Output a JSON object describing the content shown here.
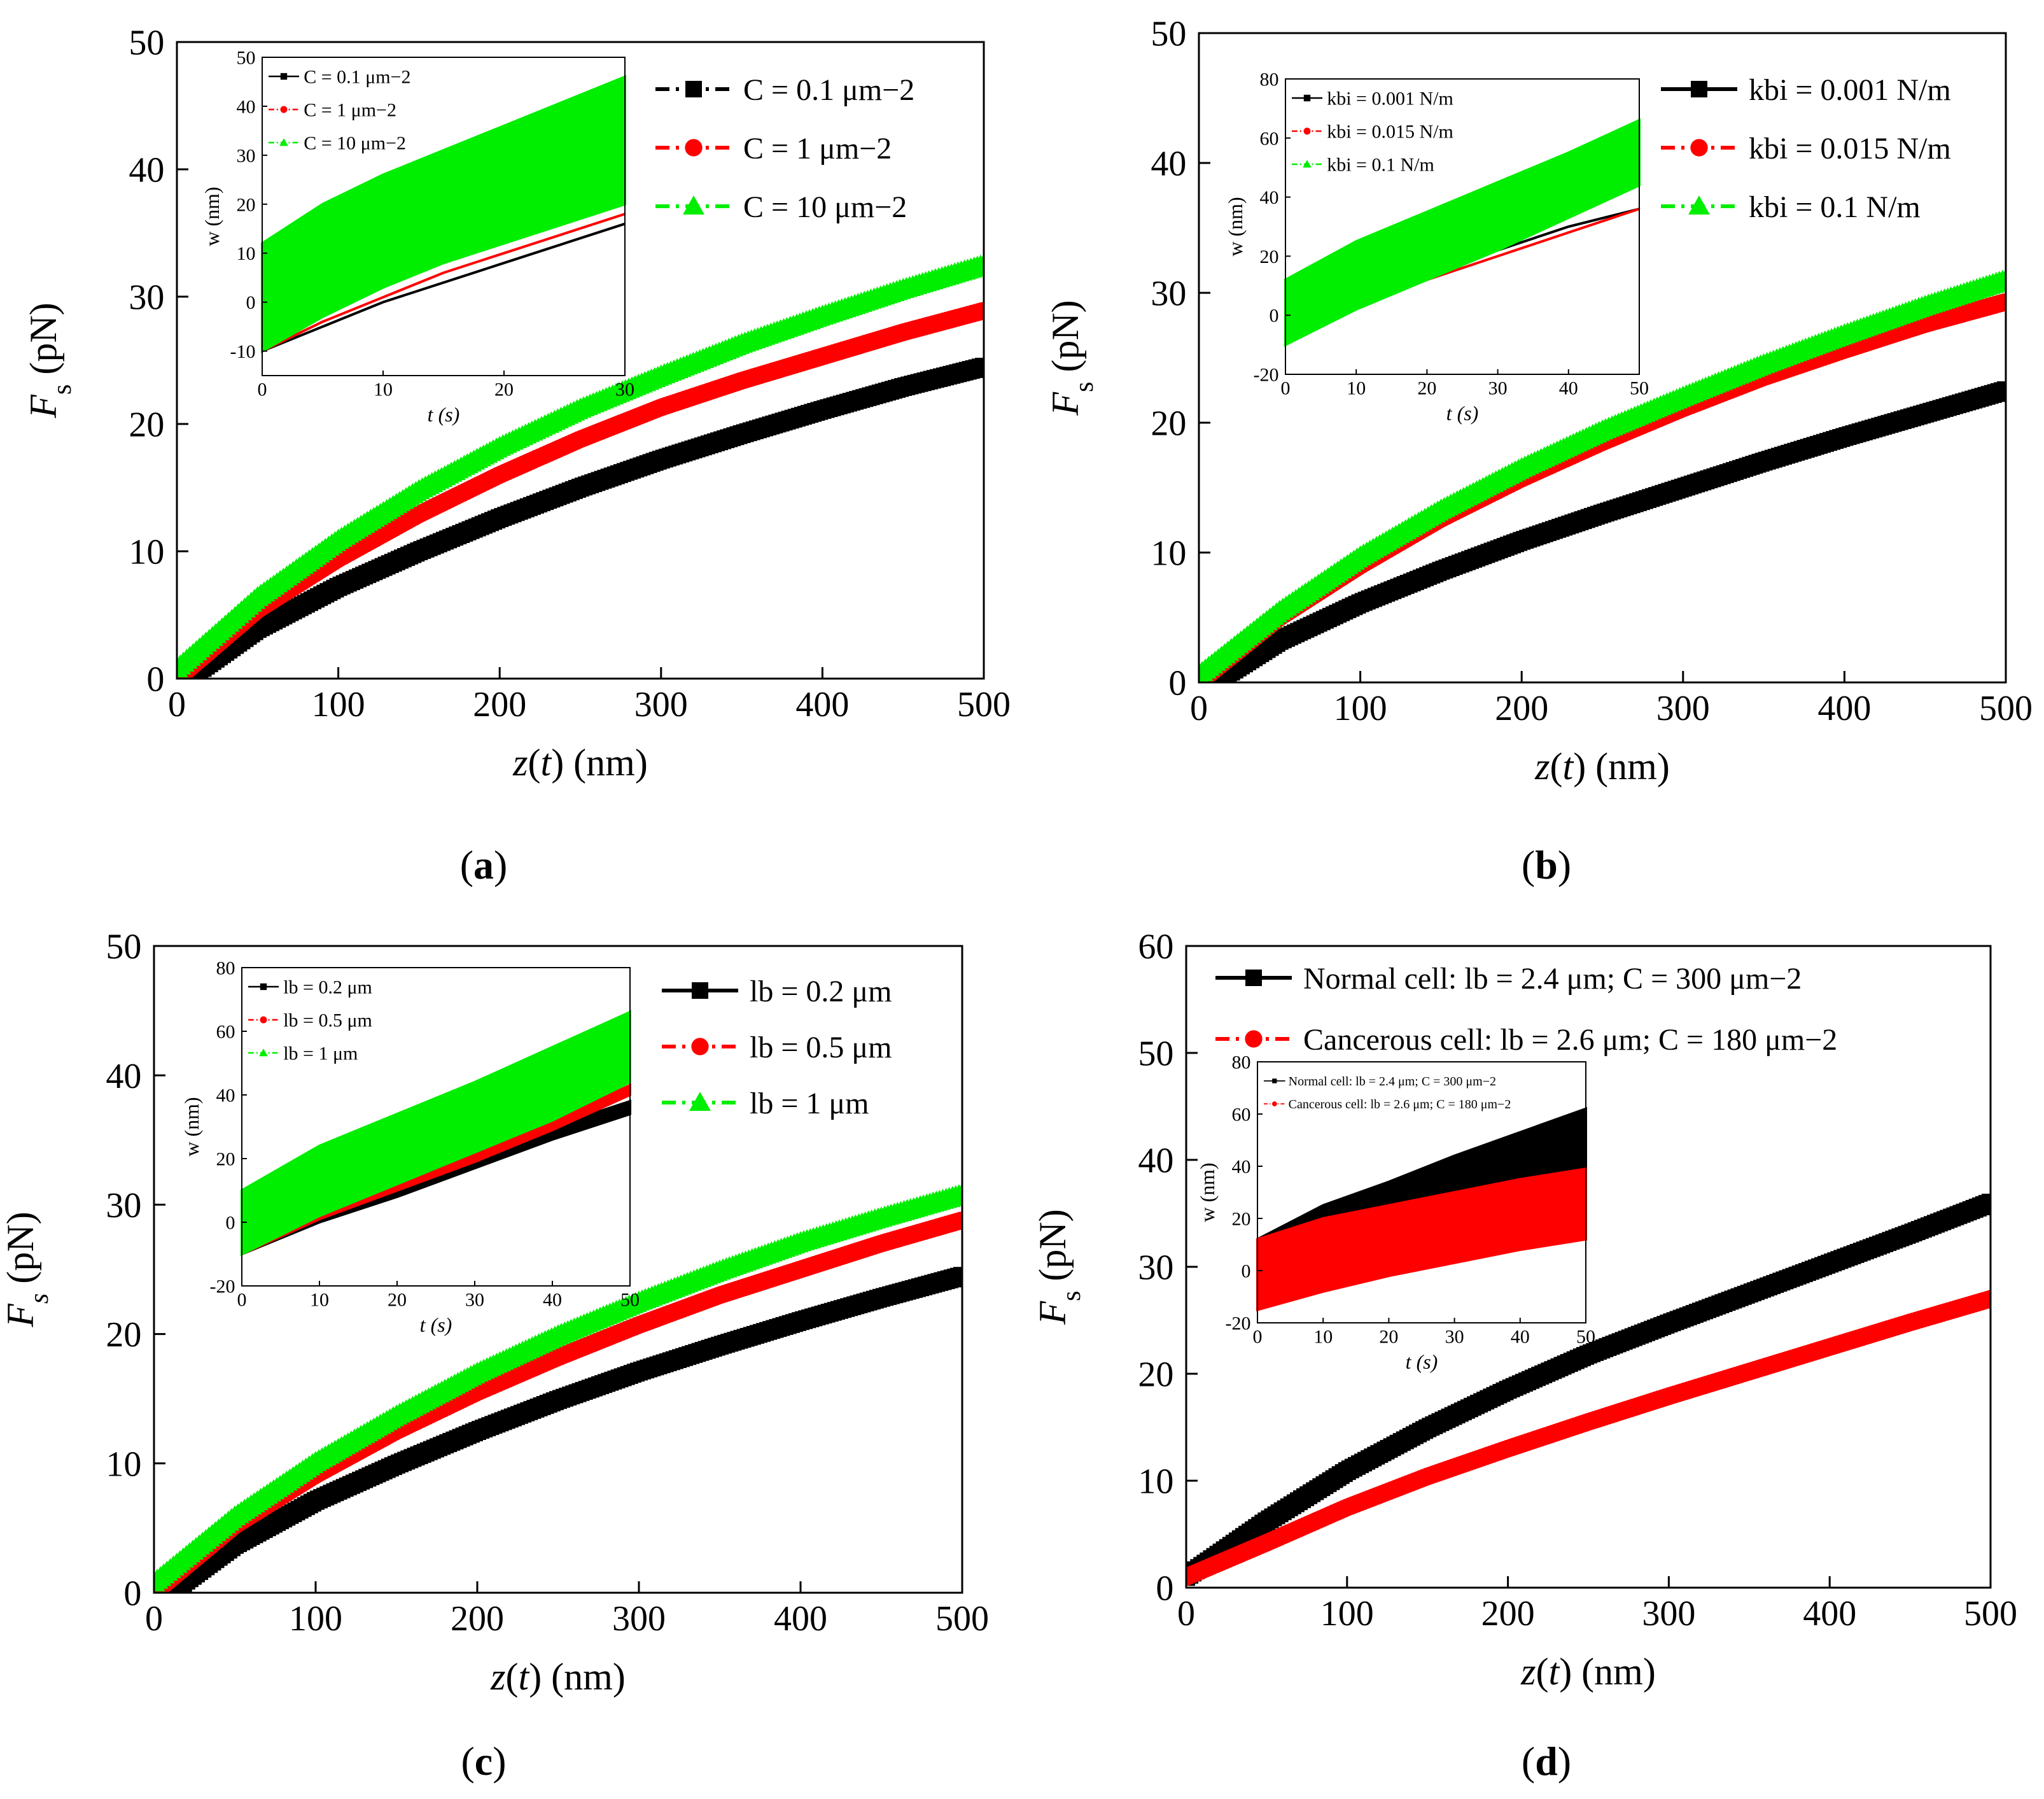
{
  "chart_data": [
    {
      "id": "a",
      "type": "line",
      "panel_label": "(a)",
      "xlabel": "z(t) (nm)",
      "ylabel": "Fs (pN)",
      "xlim": [
        0,
        500
      ],
      "ylim": [
        0,
        50
      ],
      "xticks": [
        0,
        100,
        200,
        300,
        400,
        500
      ],
      "yticks": [
        0,
        10,
        20,
        30,
        40,
        50
      ],
      "series": [
        {
          "name": "C = 0.1 μm−2",
          "color": "#000000",
          "marker": "square",
          "style": "dashdot",
          "x": [
            10,
            50,
            100,
            150,
            200,
            250,
            300,
            350,
            400,
            450,
            500
          ],
          "values": [
            0.3,
            3.9,
            7.2,
            10.0,
            12.6,
            15.0,
            17.2,
            19.2,
            21.1,
            22.9,
            24.5
          ]
        },
        {
          "name": "C = 1  μm−2",
          "color": "#ff0000",
          "marker": "circle",
          "style": "dashdot",
          "x": [
            5,
            50,
            100,
            150,
            200,
            250,
            300,
            350,
            400,
            450,
            500
          ],
          "values": [
            0.5,
            5.4,
            9.4,
            12.9,
            16.0,
            18.8,
            21.3,
            23.4,
            25.3,
            27.2,
            28.9
          ]
        },
        {
          "name": "C = 10 μm−2",
          "color": "#00ee00",
          "marker": "triangle",
          "style": "dashdot",
          "x": [
            0,
            50,
            100,
            150,
            200,
            250,
            300,
            350,
            400,
            450,
            500
          ],
          "values": [
            0.8,
            6.4,
            10.9,
            14.8,
            18.2,
            21.2,
            23.8,
            26.3,
            28.5,
            30.6,
            32.5
          ]
        }
      ],
      "inset": {
        "xlabel": "t (s)",
        "ylabel": "w (nm)",
        "xlim": [
          0,
          30
        ],
        "ylim": [
          -15,
          50
        ],
        "xticks": [
          0,
          10,
          20,
          30
        ],
        "yticks": [
          -10,
          0,
          10,
          20,
          30,
          40,
          50
        ],
        "series": [
          {
            "name": "C = 0.1 μm−2",
            "color": "#000000",
            "lower": [
              -10,
              -5,
              0,
              4,
              8,
              12,
              16
            ],
            "upper": [
              -10,
              -5,
              0,
              4,
              8,
              12,
              16
            ],
            "x": [
              0,
              5,
              10,
              15,
              20,
              25,
              30
            ]
          },
          {
            "name": "C = 1  μm−2",
            "color": "#ff0000",
            "lower": [
              -10,
              -4,
              1,
              6,
              10,
              14,
              18
            ],
            "upper": [
              -10,
              -4,
              1,
              6,
              10,
              14,
              18
            ],
            "x": [
              0,
              5,
              10,
              15,
              20,
              25,
              30
            ]
          },
          {
            "name": "C = 10 μm−2",
            "color": "#00ee00",
            "lower": [
              -10,
              -3,
              3,
              8,
              12,
              16,
              20
            ],
            "upper": [
              12,
              20,
              26,
              31,
              36,
              41,
              46
            ],
            "x": [
              0,
              5,
              10,
              15,
              20,
              25,
              30
            ]
          }
        ]
      }
    },
    {
      "id": "b",
      "type": "line",
      "panel_label": "(b)",
      "xlabel": "z(t) (nm)",
      "ylabel": "Fs (pN)",
      "xlim": [
        0,
        500
      ],
      "ylim": [
        0,
        50
      ],
      "xticks": [
        0,
        100,
        200,
        300,
        400,
        500
      ],
      "yticks": [
        0,
        10,
        20,
        30,
        40,
        50
      ],
      "series": [
        {
          "name": "kbi = 0.001 N/m",
          "color": "#000000",
          "marker": "square",
          "style": "solid",
          "x": [
            12,
            50,
            100,
            150,
            200,
            250,
            300,
            350,
            400,
            450,
            500
          ],
          "values": [
            0.2,
            3.2,
            6.1,
            8.6,
            10.9,
            13.0,
            15.0,
            17.0,
            18.9,
            20.7,
            22.5
          ]
        },
        {
          "name": "kbi = 0.015 N/m",
          "color": "#ff0000",
          "marker": "circle",
          "style": "dashdot",
          "x": [
            5,
            50,
            100,
            150,
            200,
            250,
            300,
            350,
            400,
            450,
            500
          ],
          "values": [
            0.5,
            5.0,
            9.0,
            12.6,
            15.7,
            18.5,
            21.1,
            23.5,
            25.6,
            27.6,
            29.3
          ]
        },
        {
          "name": "kbi = 0.1 N/m",
          "color": "#00ee00",
          "marker": "triangle",
          "style": "dashdot",
          "x": [
            0,
            50,
            100,
            150,
            200,
            250,
            300,
            350,
            400,
            450,
            500
          ],
          "values": [
            0.6,
            5.5,
            9.7,
            13.3,
            16.5,
            19.4,
            22.0,
            24.5,
            26.8,
            29.0,
            31.0
          ]
        }
      ],
      "inset": {
        "xlabel": "t (s)",
        "ylabel": "w (nm)",
        "xlim": [
          0,
          50
        ],
        "ylim": [
          -20,
          80
        ],
        "xticks": [
          0,
          10,
          20,
          30,
          40,
          50
        ],
        "yticks": [
          -20,
          0,
          20,
          40,
          60,
          80
        ],
        "series": [
          {
            "name": "kbi = 0.001 N/m",
            "color": "#000000",
            "lower": [
              -8,
              5,
              14,
              22,
              30,
              36
            ],
            "upper": [
              -8,
              5,
              14,
              22,
              30,
              36
            ],
            "x": [
              0,
              10,
              20,
              30,
              40,
              50
            ]
          },
          {
            "name": "kbi = 0.015 N/m",
            "color": "#ff0000",
            "lower": [
              -8,
              3,
              12,
              20,
              28,
              36
            ],
            "upper": [
              -8,
              3,
              12,
              20,
              28,
              36
            ],
            "x": [
              0,
              10,
              20,
              30,
              40,
              50
            ]
          },
          {
            "name": "kbi = 0.1 N/m",
            "color": "#00ee00",
            "lower": [
              -10,
              2,
              12,
              22,
              33,
              44
            ],
            "upper": [
              12,
              25,
              35,
              45,
              55,
              66
            ],
            "x": [
              0,
              10,
              20,
              30,
              40,
              50
            ]
          }
        ]
      }
    },
    {
      "id": "c",
      "type": "line",
      "panel_label": "(c)",
      "xlabel": "z(t) (nm)",
      "ylabel": "Fs (pN)",
      "xlim": [
        0,
        500
      ],
      "ylim": [
        0,
        50
      ],
      "xticks": [
        0,
        100,
        200,
        300,
        400,
        500
      ],
      "yticks": [
        0,
        10,
        20,
        30,
        40,
        50
      ],
      "series": [
        {
          "name": "lb = 0.2 μm",
          "color": "#000000",
          "marker": "square",
          "style": "solid",
          "x": [
            12,
            50,
            100,
            150,
            200,
            250,
            300,
            350,
            400,
            450,
            500
          ],
          "values": [
            0.2,
            3.7,
            7.1,
            9.9,
            12.5,
            14.9,
            17.1,
            19.1,
            21.0,
            22.8,
            24.5
          ]
        },
        {
          "name": "lb = 0.5 μm",
          "color": "#ff0000",
          "marker": "circle",
          "style": "dashdot",
          "x": [
            5,
            50,
            100,
            150,
            200,
            250,
            300,
            350,
            400,
            450,
            500
          ],
          "values": [
            0.5,
            5.2,
            9.1,
            12.5,
            15.5,
            18.2,
            20.7,
            23.0,
            25.0,
            27.0,
            28.8
          ]
        },
        {
          "name": "lb = 1 μm",
          "color": "#00ee00",
          "marker": "triangle",
          "style": "dashdot",
          "x": [
            0,
            50,
            100,
            150,
            200,
            250,
            300,
            350,
            400,
            450,
            500
          ],
          "values": [
            0.8,
            5.9,
            10.1,
            13.7,
            17.0,
            19.9,
            22.5,
            24.9,
            27.1,
            29.0,
            30.8
          ]
        }
      ],
      "inset": {
        "xlabel": "t (s)",
        "ylabel": "w (nm)",
        "xlim": [
          0,
          50
        ],
        "ylim": [
          -20,
          80
        ],
        "xticks": [
          0,
          10,
          20,
          30,
          40,
          50
        ],
        "yticks": [
          -20,
          0,
          20,
          40,
          60,
          80
        ],
        "series": [
          {
            "name": "lb = 0.2 μm",
            "color": "#000000",
            "lower": [
              -10,
              0,
              8,
              17,
              26,
              34
            ],
            "upper": [
              -10,
              2,
              11,
              21,
              30,
              38
            ],
            "x": [
              0,
              10,
              20,
              30,
              40,
              50
            ]
          },
          {
            "name": "lb = 0.5 μm",
            "color": "#ff0000",
            "lower": [
              -10,
              1,
              10,
              19,
              29,
              40
            ],
            "upper": [
              -10,
              2,
              12,
              22,
              32,
              43
            ],
            "x": [
              0,
              10,
              20,
              30,
              40,
              50
            ]
          },
          {
            "name": "lb = 1 μm",
            "color": "#00ee00",
            "lower": [
              -10,
              2,
              12,
              22,
              32,
              44
            ],
            "upper": [
              10,
              24,
              34,
              44,
              55,
              66
            ],
            "x": [
              0,
              10,
              20,
              30,
              40,
              50
            ]
          }
        ]
      }
    },
    {
      "id": "d",
      "type": "line",
      "panel_label": "(d)",
      "xlabel": "z(t) (nm)",
      "ylabel": "Fs (pN)",
      "xlim": [
        0,
        500
      ],
      "ylim": [
        0,
        60
      ],
      "xticks": [
        0,
        100,
        200,
        300,
        400,
        500
      ],
      "yticks": [
        0,
        10,
        20,
        30,
        40,
        50,
        60
      ],
      "series": [
        {
          "name": "Normal cell: lb = 2.4 μm; C = 300 μm−2",
          "color": "#000000",
          "marker": "square",
          "style": "solid",
          "x": [
            0,
            50,
            100,
            150,
            200,
            250,
            300,
            350,
            400,
            450,
            500
          ],
          "values": [
            1.0,
            6.2,
            10.9,
            14.9,
            18.5,
            21.8,
            24.7,
            27.5,
            30.3,
            33.1,
            36.0
          ]
        },
        {
          "name": "Cancerous cell: lb = 2.6 μm; C = 180 μm−2",
          "color": "#ff0000",
          "marker": "circle",
          "style": "dashdot",
          "x": [
            0,
            50,
            100,
            150,
            200,
            250,
            300,
            350,
            400,
            450,
            500
          ],
          "values": [
            1.0,
            4.2,
            7.5,
            10.4,
            13.0,
            15.5,
            17.9,
            20.2,
            22.5,
            24.8,
            27.0
          ]
        }
      ],
      "inset": {
        "xlabel": "t (s)",
        "ylabel": "w (nm)",
        "xlim": [
          0,
          50
        ],
        "ylim": [
          -20,
          80
        ],
        "xticks": [
          0,
          10,
          20,
          30,
          40,
          50
        ],
        "yticks": [
          -20,
          0,
          20,
          40,
          60,
          80
        ],
        "series": [
          {
            "name": "Normal cell: lb = 2.4 μm; C = 300 μm−2",
            "color": "#000000",
            "lower": [
              12,
              20,
              24,
              28,
              32,
              36
            ],
            "upper": [
              12,
              25,
              34,
              44,
              53,
              62
            ],
            "x": [
              0,
              10,
              20,
              30,
              40,
              50
            ]
          },
          {
            "name": "Cancerous cell: lb = 2.6 μm; C = 180 μm−2",
            "color": "#ff0000",
            "lower": [
              -15,
              -8,
              -2,
              3,
              8,
              12
            ],
            "upper": [
              12,
              20,
              25,
              30,
              35,
              39
            ],
            "x": [
              0,
              10,
              20,
              30,
              40,
              50
            ]
          }
        ]
      }
    }
  ]
}
